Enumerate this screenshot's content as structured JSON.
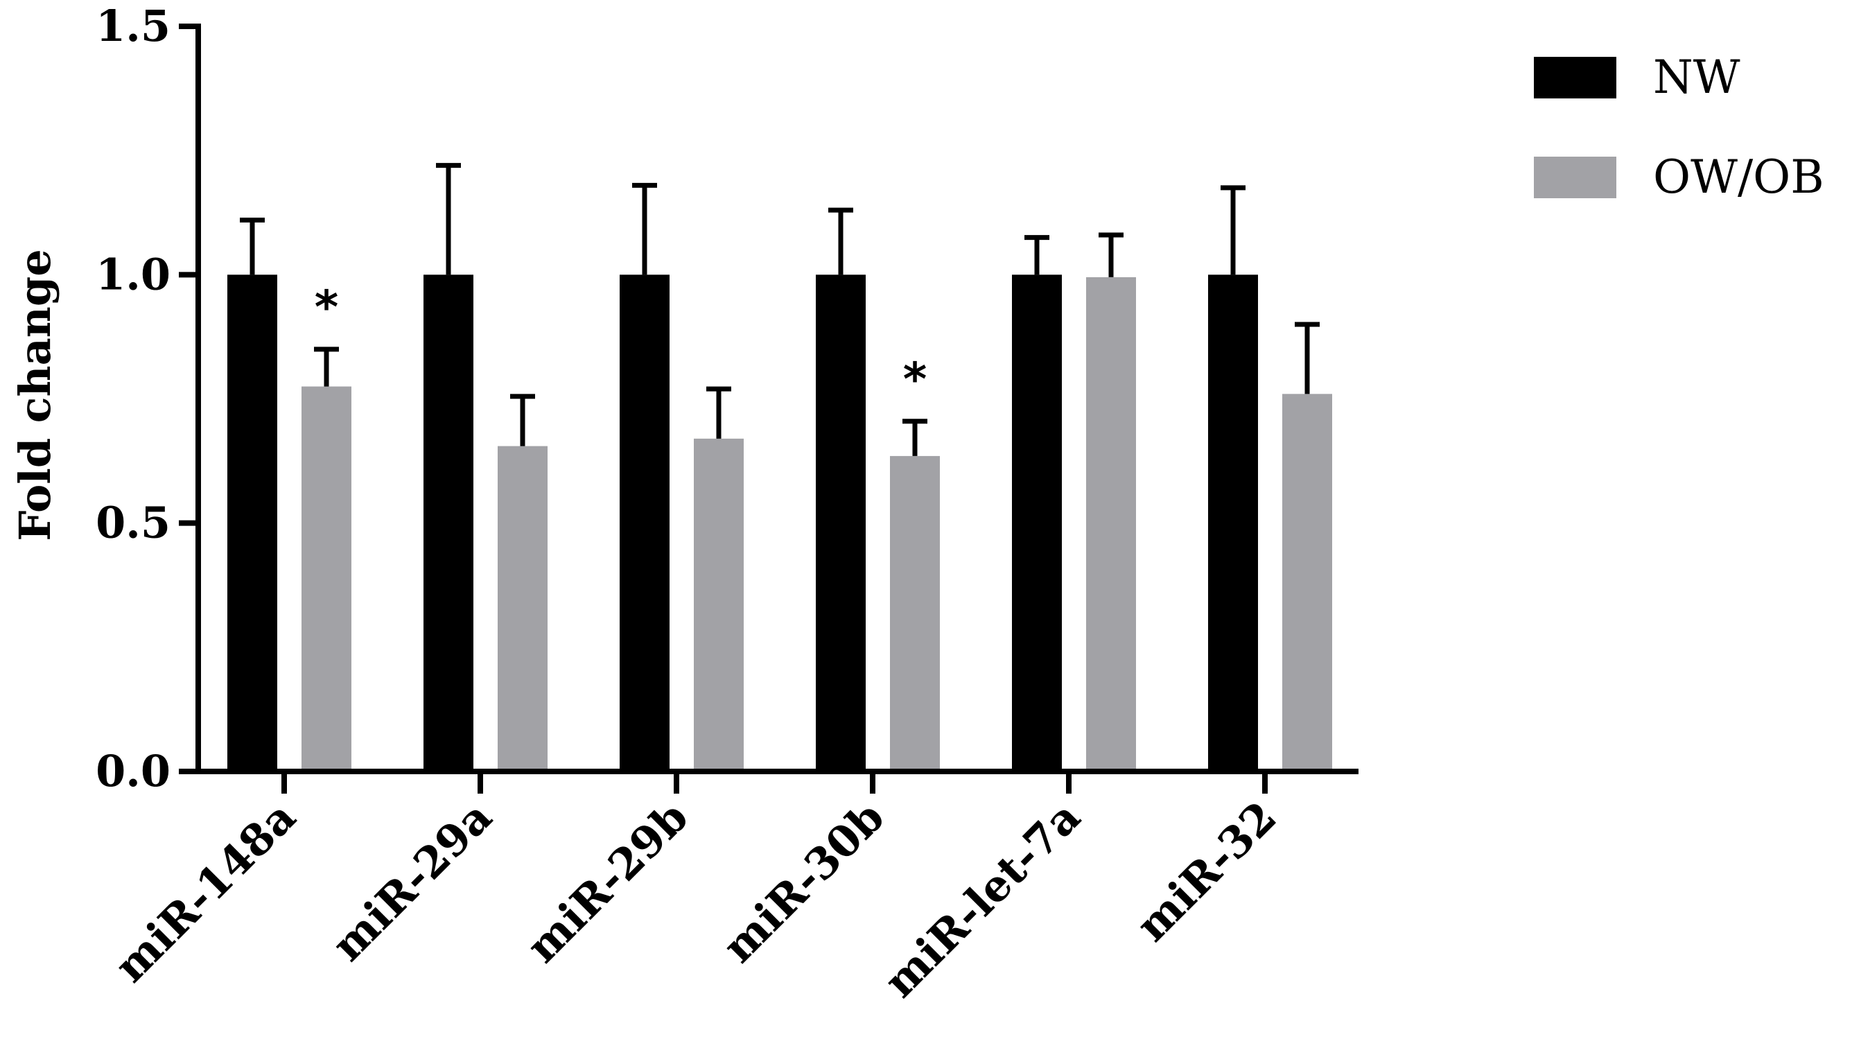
{
  "chart_data": {
    "type": "bar",
    "ylabel": "Fold change",
    "xlabel": "",
    "ylim": [
      0,
      1.5
    ],
    "yticks": [
      0.0,
      0.5,
      1.0,
      1.5
    ],
    "ytick_labels": [
      "0.0",
      "0.5",
      "1.0",
      "1.5"
    ],
    "categories": [
      "miR-148a",
      "miR-29a",
      "miR-29b",
      "miR-30b",
      "miR-let-7a",
      "miR-32"
    ],
    "series": [
      {
        "name": "NW",
        "color": "#000000",
        "values": [
          1.0,
          1.0,
          1.0,
          1.0,
          1.0,
          1.0
        ],
        "error": [
          0.11,
          0.22,
          0.18,
          0.13,
          0.075,
          0.175
        ]
      },
      {
        "name": "OW/OB",
        "color": "#a2a2a6",
        "values": [
          0.775,
          0.655,
          0.67,
          0.635,
          0.995,
          0.76
        ],
        "error": [
          0.075,
          0.1,
          0.1,
          0.07,
          0.085,
          0.14
        ]
      }
    ],
    "significance": [
      {
        "category": "miR-148a",
        "series": "OW/OB",
        "label": "*"
      },
      {
        "category": "miR-30b",
        "series": "OW/OB",
        "label": "*"
      }
    ],
    "legend_position": "top-right",
    "grid": false
  }
}
